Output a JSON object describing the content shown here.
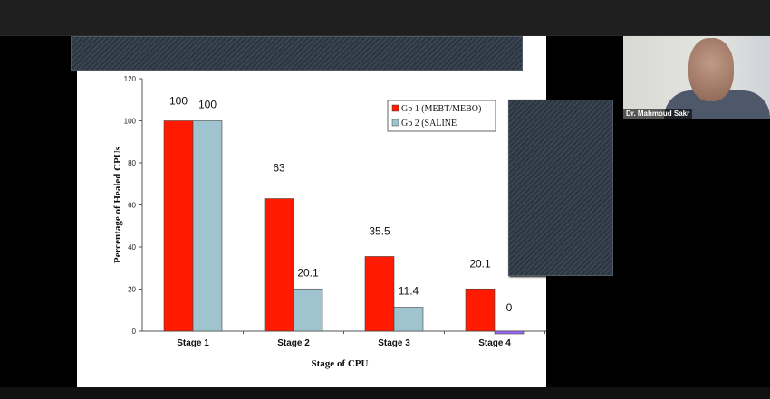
{
  "meeting": {
    "participant_name": "Dr. Mahmoud Sakr"
  },
  "chart_data": {
    "type": "bar",
    "categories": [
      "Stage 1",
      "Stage 2",
      "Stage 3",
      "Stage 4"
    ],
    "series": [
      {
        "name": "Gp 1 (MEBT/MEBO)",
        "values": [
          100,
          63,
          35.5,
          20.1
        ],
        "labels": [
          "100",
          "63",
          "35.5",
          "20.1"
        ],
        "color": "#ff1a00"
      },
      {
        "name": "Gp 2 (SALINE",
        "values": [
          100,
          20.1,
          11.4,
          0
        ],
        "labels": [
          "100",
          "20.1",
          "11.4",
          "0"
        ],
        "color": "#9fc4cf"
      }
    ],
    "zero_bar_color": "#9966ff",
    "xlabel": "Stage of CPU",
    "ylabel": "Percentage of Healed CPUs",
    "ylim": [
      0,
      120
    ],
    "yticks": [
      0,
      20,
      40,
      60,
      80,
      100,
      120
    ],
    "legend": "top-right",
    "grid": false
  }
}
